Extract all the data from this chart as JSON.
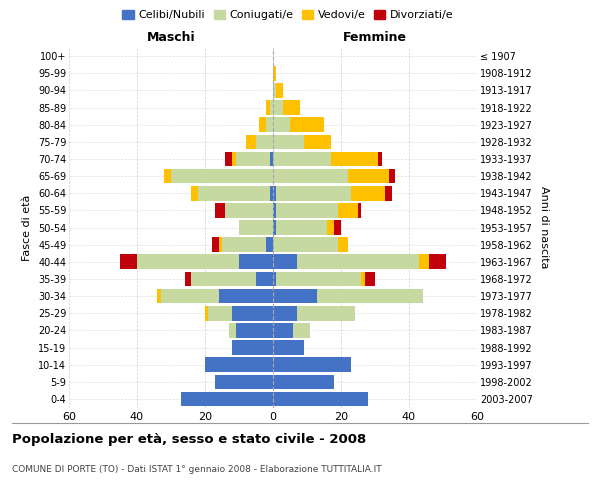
{
  "age_groups": [
    "0-4",
    "5-9",
    "10-14",
    "15-19",
    "20-24",
    "25-29",
    "30-34",
    "35-39",
    "40-44",
    "45-49",
    "50-54",
    "55-59",
    "60-64",
    "65-69",
    "70-74",
    "75-79",
    "80-84",
    "85-89",
    "90-94",
    "95-99",
    "100+"
  ],
  "birth_years": [
    "2003-2007",
    "1998-2002",
    "1993-1997",
    "1988-1992",
    "1983-1987",
    "1978-1982",
    "1973-1977",
    "1968-1972",
    "1963-1967",
    "1958-1962",
    "1953-1957",
    "1948-1952",
    "1943-1947",
    "1938-1942",
    "1933-1937",
    "1928-1932",
    "1923-1927",
    "1918-1922",
    "1913-1917",
    "1908-1912",
    "≤ 1907"
  ],
  "male_celibe": [
    27,
    17,
    20,
    12,
    11,
    12,
    16,
    5,
    10,
    2,
    0,
    0,
    1,
    0,
    1,
    0,
    0,
    0,
    0,
    0,
    0
  ],
  "male_coniugato": [
    0,
    0,
    0,
    0,
    2,
    7,
    17,
    19,
    30,
    13,
    10,
    14,
    21,
    30,
    10,
    5,
    2,
    1,
    0,
    0,
    0
  ],
  "male_vedovo": [
    0,
    0,
    0,
    0,
    0,
    1,
    1,
    0,
    0,
    1,
    0,
    0,
    2,
    2,
    1,
    3,
    2,
    1,
    0,
    0,
    0
  ],
  "male_divorziato": [
    0,
    0,
    0,
    0,
    0,
    0,
    0,
    2,
    5,
    2,
    0,
    3,
    0,
    0,
    2,
    0,
    0,
    0,
    0,
    0,
    0
  ],
  "female_celibe": [
    28,
    18,
    23,
    9,
    6,
    7,
    13,
    1,
    7,
    0,
    1,
    1,
    1,
    0,
    0,
    0,
    0,
    0,
    0,
    0,
    0
  ],
  "female_coniugato": [
    0,
    0,
    0,
    0,
    5,
    17,
    31,
    25,
    36,
    19,
    15,
    18,
    22,
    22,
    17,
    9,
    5,
    3,
    1,
    0,
    0
  ],
  "female_vedovo": [
    0,
    0,
    0,
    0,
    0,
    0,
    0,
    1,
    3,
    3,
    2,
    6,
    10,
    12,
    14,
    8,
    10,
    5,
    2,
    1,
    0
  ],
  "female_divorziato": [
    0,
    0,
    0,
    0,
    0,
    0,
    0,
    3,
    5,
    0,
    2,
    1,
    2,
    2,
    1,
    0,
    0,
    0,
    0,
    0,
    0
  ],
  "colors": {
    "celibe": "#4472c4",
    "coniugato": "#c5d9a0",
    "vedovo": "#ffc000",
    "divorziato": "#c0000a"
  },
  "title": "Popolazione per età, sesso e stato civile - 2008",
  "subtitle": "COMUNE DI PORTE (TO) - Dati ISTAT 1° gennaio 2008 - Elaborazione TUTTITALIA.IT",
  "xlabel_left": "Maschi",
  "xlabel_right": "Femmine",
  "ylabel_left": "Fasce di età",
  "ylabel_right": "Anni di nascita",
  "xlim": 60,
  "background_color": "#ffffff",
  "grid_color": "#cccccc"
}
